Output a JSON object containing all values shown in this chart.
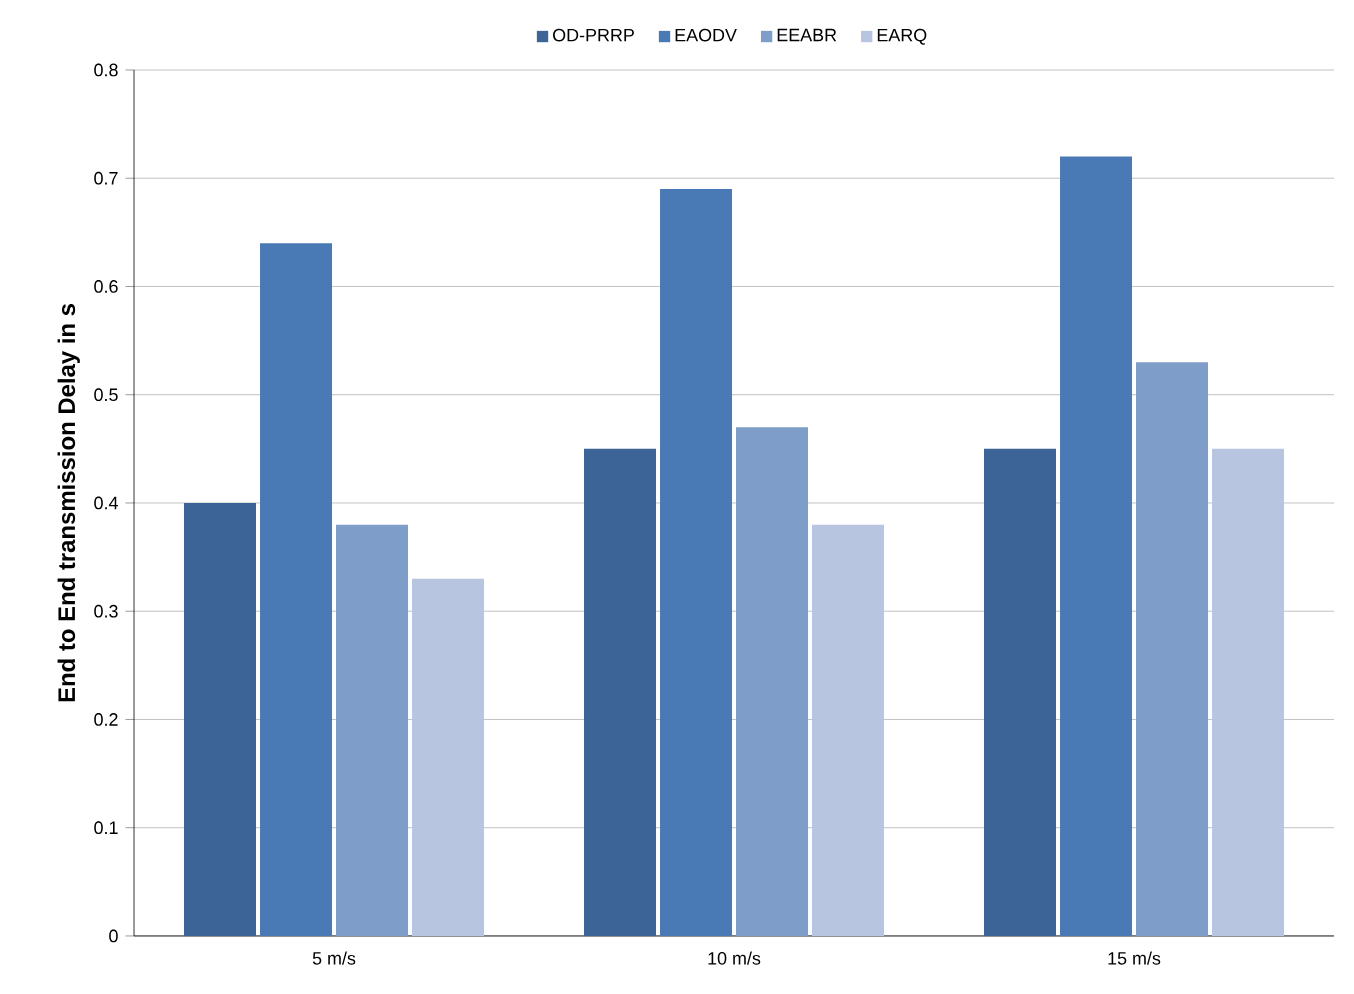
{
  "chart_data": {
    "type": "bar",
    "ylabel": "End to End transmission Delay in s",
    "categories": [
      "5 m/s",
      "10 m/s",
      "15 m/s"
    ],
    "series": [
      {
        "name": "OD-PRRP",
        "color": "#3d6496",
        "values": [
          0.4,
          0.45,
          0.45
        ]
      },
      {
        "name": "EAODV",
        "color": "#4a7ab5",
        "values": [
          0.64,
          0.69,
          0.72
        ]
      },
      {
        "name": "EEABR",
        "color": "#7f9dc9",
        "values": [
          0.38,
          0.47,
          0.53
        ]
      },
      {
        "name": "EARQ",
        "color": "#b7c5e0",
        "values": [
          0.33,
          0.38,
          0.45
        ]
      }
    ],
    "ylim": [
      0,
      0.8
    ],
    "yticks": [
      0,
      0.1,
      0.2,
      0.3,
      0.4,
      0.5,
      0.6,
      0.7,
      0.8
    ],
    "grid": "y",
    "legend": "top"
  }
}
